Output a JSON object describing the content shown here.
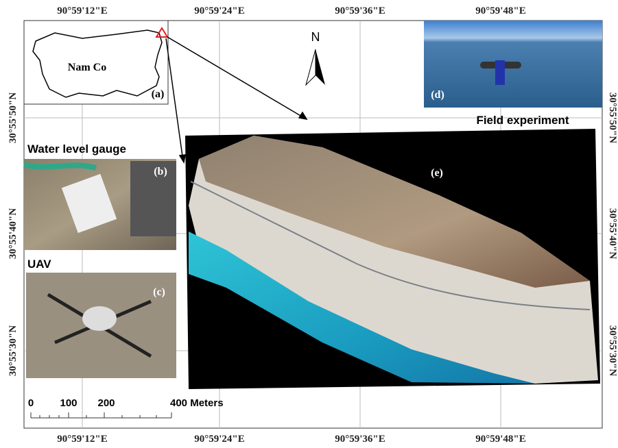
{
  "lon_labels": [
    "90°59'12\"E",
    "90°59'24\"E",
    "90°59'36\"E",
    "90°59'48\"E"
  ],
  "lat_labels": [
    "30°55'50\"N",
    "30°55'40\"N",
    "30°55'30\"N"
  ],
  "panel_a": {
    "lake_name": "Nam Co",
    "tag": "(a)"
  },
  "panel_b": {
    "title": "Water level gauge",
    "tag": "(b)"
  },
  "panel_c": {
    "title": "UAV",
    "tag": "(c)"
  },
  "panel_d": {
    "tag": "(d)"
  },
  "panel_e": {
    "title": "Field experiment",
    "tag": "(e)"
  },
  "north_arrow": "N",
  "scale_bar": {
    "labels": [
      "0",
      "100",
      "200",
      "400 Meters"
    ]
  }
}
